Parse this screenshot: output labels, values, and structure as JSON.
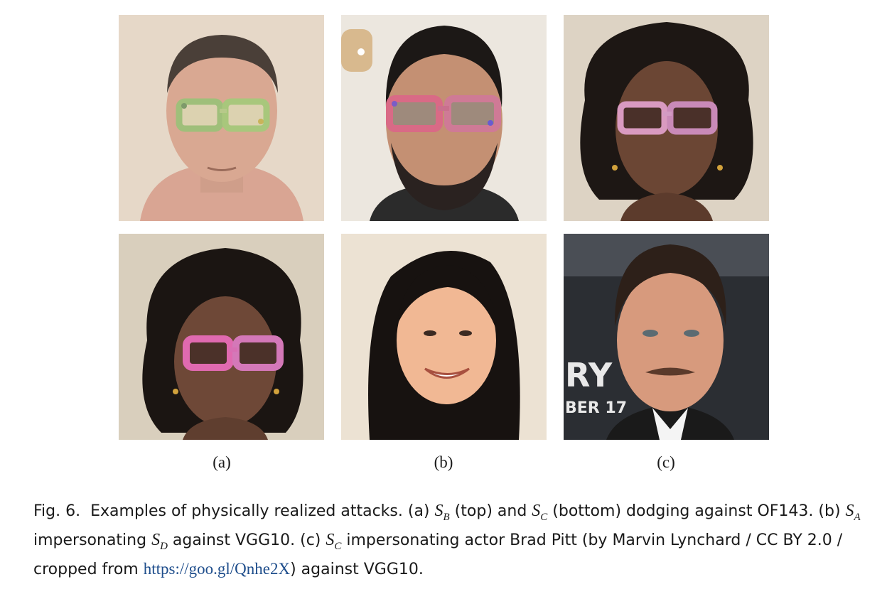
{
  "figure": {
    "photos": [
      {
        "alt": "Subject SB wearing adversarial eyeglasses (top, a)"
      },
      {
        "alt": "Subject SA wearing adversarial eyeglasses (top, b)"
      },
      {
        "alt": "Subject SC wearing adversarial eyeglasses (top, c)"
      },
      {
        "alt": "Subject SC wearing adversarial eyeglasses (bottom, a)"
      },
      {
        "alt": "Impersonation target SD (bottom, b)"
      },
      {
        "alt": "Impersonation target Brad Pitt (bottom, c)"
      }
    ],
    "sub_labels": [
      "(a)",
      "(b)",
      "(c)"
    ],
    "background_text": {
      "line1": "RY",
      "line2": "BER 17"
    }
  },
  "caption": {
    "fig_num": "Fig. 6.",
    "t1": "Examples of physically realized attacks. (a) ",
    "m1": "S",
    "m1_sub": "B",
    "t2": " (top) and ",
    "m2": "S",
    "m2_sub": "C",
    "t3": " (bottom) dodging against OF143. (b) ",
    "m3": "S",
    "m3_sub": "A",
    "t4": " impersonating ",
    "m4": "S",
    "m4_sub": "D",
    "t5": " against VGG10. (c) ",
    "m5": "S",
    "m5_sub": "C",
    "t6": " impersonating actor Brad Pitt (by Marvin Lynchard / CC BY 2.0 / cropped from ",
    "link": "https://goo.gl/Qnhe2X",
    "t7": ") against VGG10."
  }
}
